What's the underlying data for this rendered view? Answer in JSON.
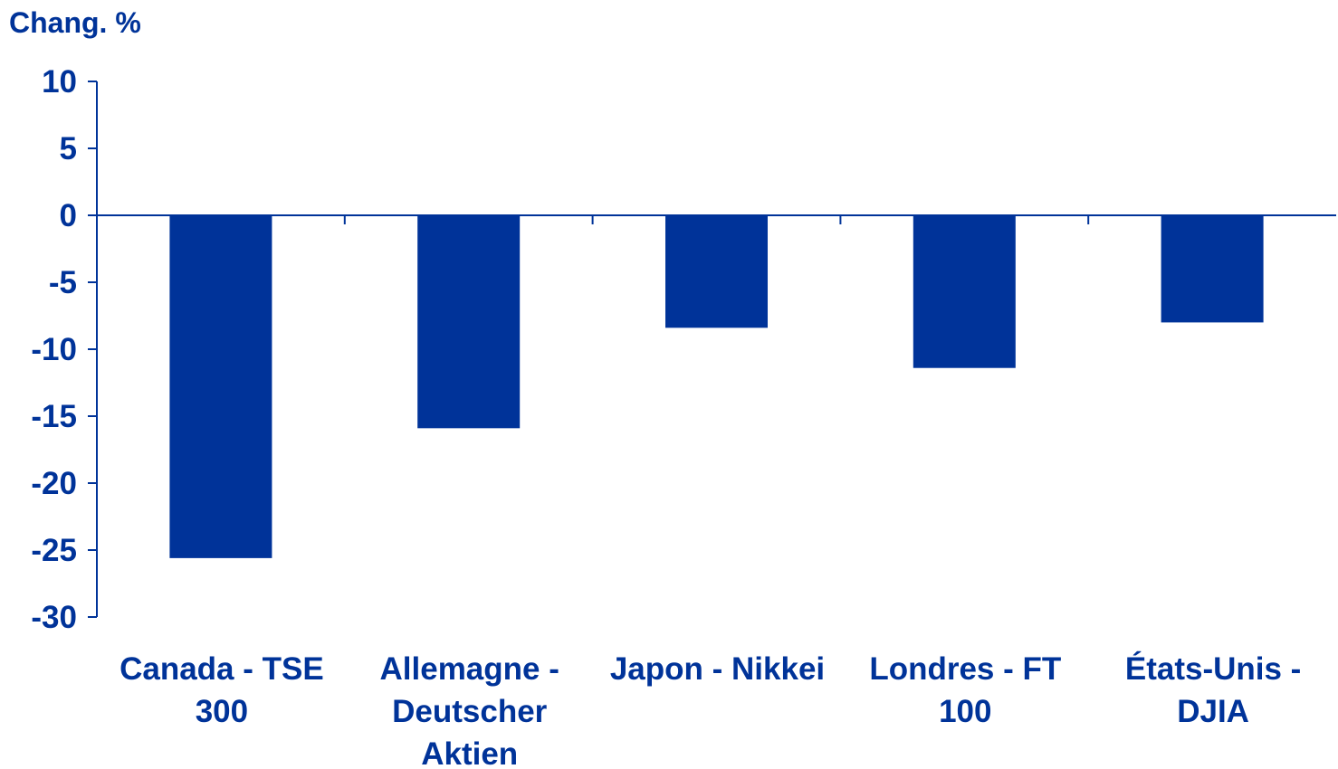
{
  "chart_data": {
    "type": "bar",
    "ylabel": "Chang. %",
    "categories": [
      [
        "Canada - TSE",
        "300"
      ],
      [
        "Allemagne -",
        "Deutscher",
        "Aktien"
      ],
      [
        "Japon - Nikkei"
      ],
      [
        "Londres - FT",
        "100"
      ],
      [
        "États-Unis -",
        "DJIA"
      ]
    ],
    "values": [
      -25.6,
      -15.9,
      -8.4,
      -11.4,
      -8.0
    ],
    "ylim": [
      -30,
      10
    ],
    "yticks": [
      10,
      5,
      0,
      -5,
      -10,
      -15,
      -20,
      -25,
      -30
    ],
    "grid": false,
    "legend": "none",
    "colors": {
      "bar": "#003399",
      "axis": "#003399",
      "text": "#003399"
    }
  }
}
